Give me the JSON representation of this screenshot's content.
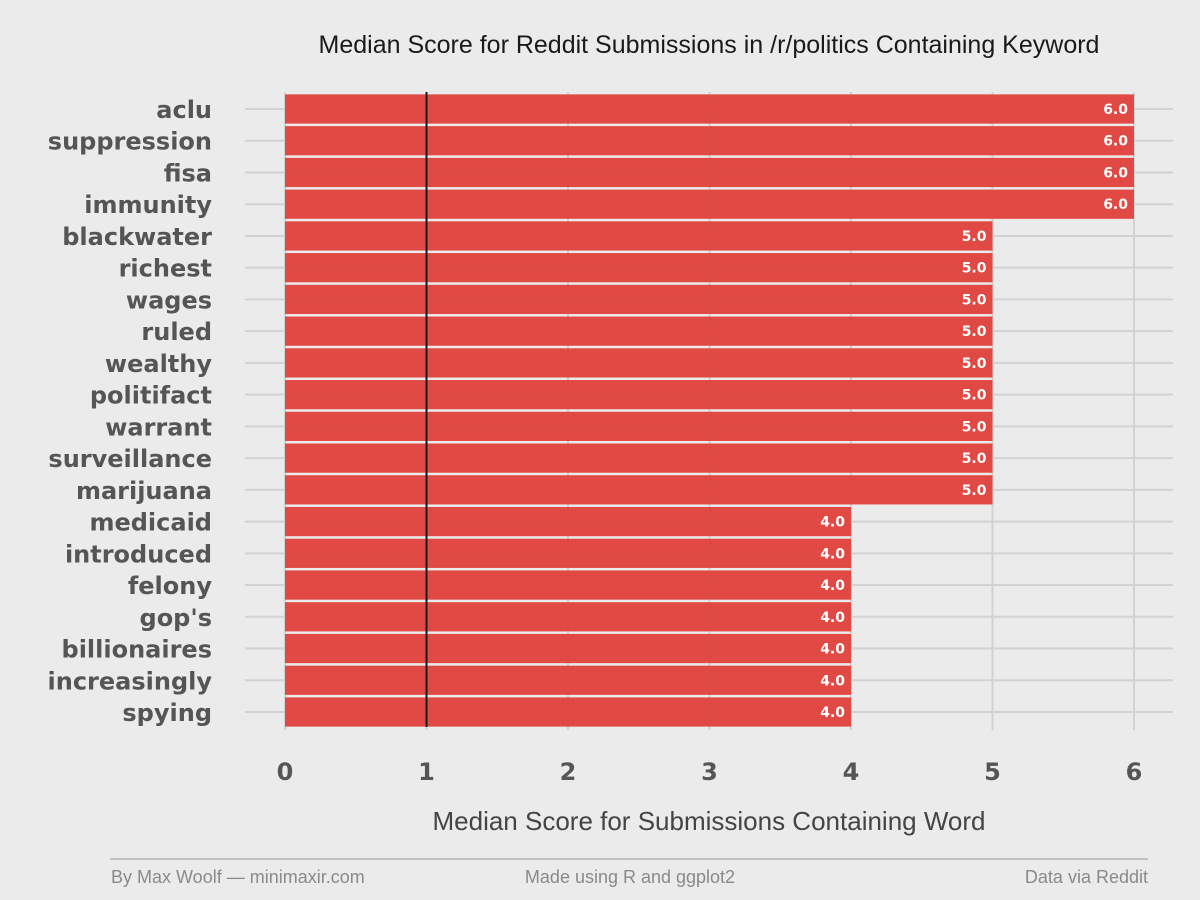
{
  "chart_data": {
    "type": "bar",
    "orientation": "horizontal",
    "title": "Median Score for Reddit Submissions in /r/politics Containing Keyword",
    "xlabel": "Median Score for Submissions Containing Word",
    "ylabel": "",
    "categories": [
      "aclu",
      "suppression",
      "fisa",
      "immunity",
      "blackwater",
      "richest",
      "wages",
      "ruled",
      "wealthy",
      "politifact",
      "warrant",
      "surveillance",
      "marijuana",
      "medicaid",
      "introduced",
      "felony",
      "gop's",
      "billionaires",
      "increasingly",
      "spying"
    ],
    "values": [
      6,
      6,
      6,
      6,
      5,
      5,
      5,
      5,
      5,
      5,
      5,
      5,
      5,
      4,
      4,
      4,
      4,
      4,
      4,
      4
    ],
    "value_labels": [
      "6.0",
      "6.0",
      "6.0",
      "6.0",
      "5.0",
      "5.0",
      "5.0",
      "5.0",
      "5.0",
      "5.0",
      "5.0",
      "5.0",
      "5.0",
      "4.0",
      "4.0",
      "4.0",
      "4.0",
      "4.0",
      "4.0",
      "4.0"
    ],
    "xlim": [
      0,
      6
    ],
    "xticks": [
      "0",
      "1",
      "2",
      "3",
      "4",
      "5",
      "6"
    ],
    "reference_line": 1,
    "grid": true,
    "bar_color": "#e0413b",
    "reference_line_color": "#1a1a1a",
    "background_color": "#ebebeb"
  },
  "footer": {
    "left": "By Max Woolf — minimaxir.com",
    "center": "Made using R and ggplot2",
    "right": "Data via Reddit"
  }
}
